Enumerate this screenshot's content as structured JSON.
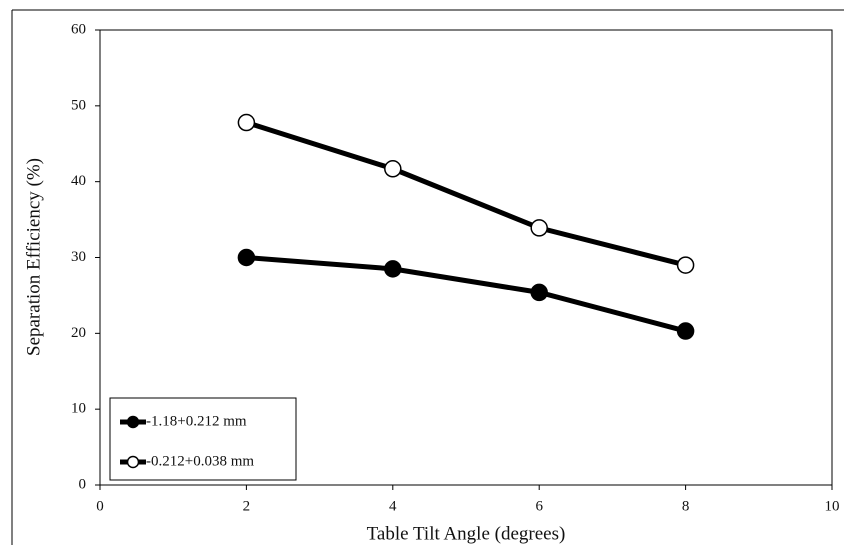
{
  "chart_data": {
    "type": "line",
    "x_label": "Table Tilt Angle (degrees)",
    "y_label": "Separation Efficiency (%)",
    "x": [
      2,
      4,
      6,
      8
    ],
    "series": [
      {
        "name": "-1.18+0.212 mm",
        "color": "#000000",
        "marker_fill": "#000000",
        "values": [
          30,
          28.5,
          25.4,
          20.3
        ]
      },
      {
        "name": "-0.212+0.038 mm",
        "color": "#000000",
        "marker_fill": "#ffffff",
        "values": [
          47.8,
          41.7,
          33.9,
          29.0
        ]
      }
    ],
    "xlim": [
      0,
      10
    ],
    "xticks": [
      0,
      2,
      4,
      6,
      8,
      10
    ],
    "ylim": [
      0,
      60
    ],
    "yticks": [
      0,
      10,
      20,
      30,
      40,
      50,
      60
    ],
    "grid": false,
    "legend": "lower left"
  }
}
